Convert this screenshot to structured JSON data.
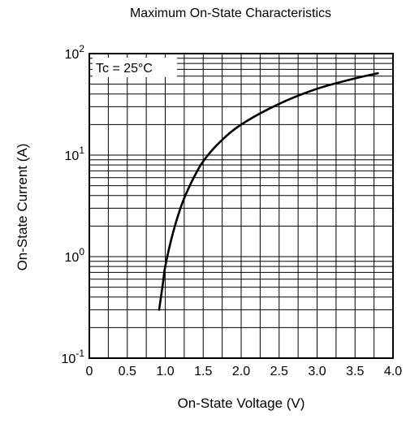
{
  "chart_data": {
    "type": "line",
    "title": "Maximum On-State Characteristics",
    "xlabel": "On-State Voltage  (V)",
    "ylabel": "On-State Current  (A)",
    "scale_y": "log",
    "xlim": [
      0,
      4.0
    ],
    "ylim": [
      0.1,
      100
    ],
    "grid": true,
    "x_ticks": [
      "0",
      "0.5",
      "1.0",
      "1.5",
      "2.0",
      "2.5",
      "3.0",
      "3.5",
      "4.0"
    ],
    "y_ticks": [
      {
        "base": "10",
        "exp": "-1",
        "value": 0.1
      },
      {
        "base": "10",
        "exp": "0",
        "value": 1
      },
      {
        "base": "10",
        "exp": "1",
        "value": 10
      },
      {
        "base": "10",
        "exp": "2",
        "value": 100
      }
    ],
    "annotation": "Tc = 25°C",
    "series": [
      {
        "x": [
          0.92,
          0.97,
          1.0,
          1.1,
          1.2,
          1.3,
          1.4,
          1.5,
          1.7,
          2.0,
          2.5,
          3.0,
          3.5,
          3.8
        ],
        "y": [
          0.3,
          0.55,
          0.8,
          1.7,
          3.0,
          4.6,
          6.5,
          8.7,
          13,
          20,
          32,
          45,
          57,
          64
        ]
      }
    ]
  }
}
